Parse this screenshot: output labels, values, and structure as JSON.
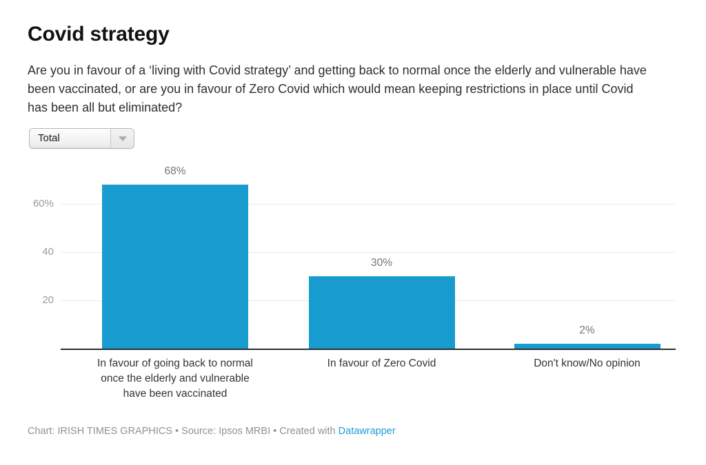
{
  "title": "Covid strategy",
  "description": "Are you in favour of a ‘living with Covid strategy’ and getting back to normal once the elderly and vulnerable have been vaccinated, or are you in favour of Zero Covid which would mean keeping restrictions in place until Covid has been all but eliminated?",
  "filter_dropdown": {
    "selected": "Total"
  },
  "chart_data": {
    "type": "bar",
    "categories": [
      "In favour of going back to normal once the elderly and vulnerable have been vaccinated",
      "In favour of Zero Covid",
      "Don't know/No opinion"
    ],
    "category_label_lines": [
      [
        "In favour of going back to normal",
        "once the elderly and vulnerable",
        "have been vaccinated"
      ],
      [
        "In favour of Zero Covid"
      ],
      [
        "Don't know/No opinion"
      ]
    ],
    "values": [
      68,
      30,
      2
    ],
    "value_labels": [
      "68%",
      "30%",
      "2%"
    ],
    "yticks": [
      {
        "value": 20,
        "label": "20"
      },
      {
        "value": 40,
        "label": "40"
      },
      {
        "value": 60,
        "label": "60%"
      }
    ],
    "ylim": [
      0,
      70
    ],
    "grid": true,
    "legend": "none",
    "bar_color": "#189cd0",
    "axis_color": "#2b2b2b",
    "gridline_color": "#ececec"
  },
  "footer": {
    "text": "Chart: IRISH TIMES GRAPHICS • Source: Ipsos MRBI • Created with ",
    "link_label": "Datawrapper",
    "link_color": "#1d9bd8"
  }
}
